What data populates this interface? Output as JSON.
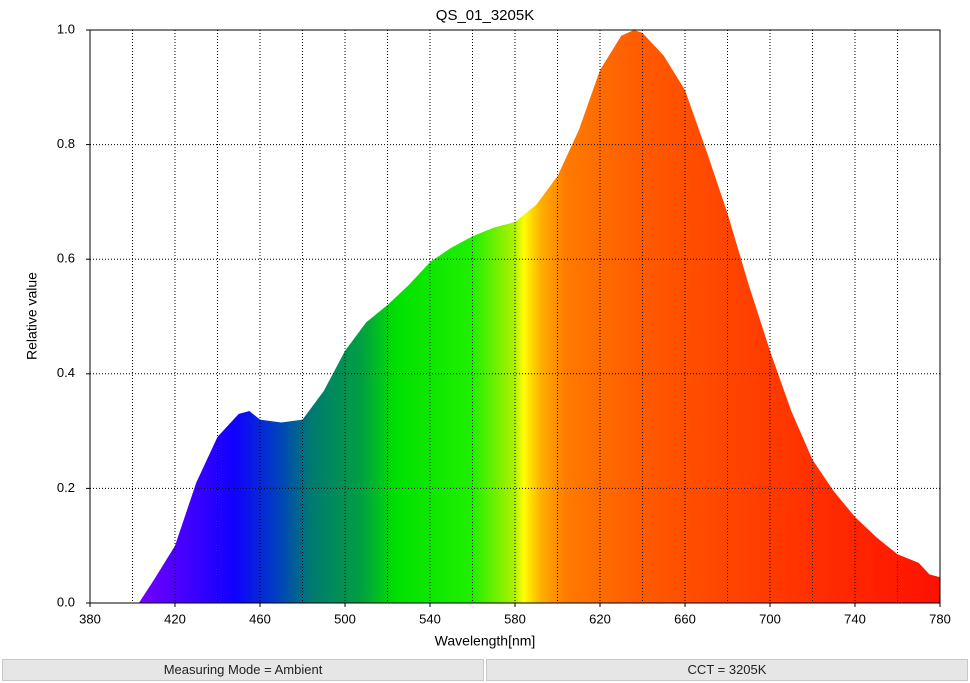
{
  "chart_data": {
    "type": "area",
    "title": "QS_01_3205K",
    "x_label": "Wavelength[nm]",
    "y_label": "Relative value",
    "x": [
      403,
      410,
      420,
      430,
      440,
      450,
      455,
      460,
      470,
      480,
      490,
      500,
      510,
      520,
      530,
      540,
      550,
      560,
      570,
      580,
      590,
      600,
      610,
      620,
      630,
      636,
      640,
      650,
      660,
      670,
      680,
      690,
      700,
      710,
      720,
      730,
      740,
      750,
      760,
      770,
      775,
      780
    ],
    "y": [
      0,
      0.04,
      0.1,
      0.21,
      0.29,
      0.33,
      0.335,
      0.32,
      0.315,
      0.32,
      0.37,
      0.44,
      0.49,
      0.52,
      0.555,
      0.595,
      0.62,
      0.64,
      0.655,
      0.665,
      0.695,
      0.745,
      0.825,
      0.93,
      0.99,
      1.0,
      0.995,
      0.955,
      0.895,
      0.79,
      0.68,
      0.555,
      0.44,
      0.335,
      0.25,
      0.195,
      0.15,
      0.115,
      0.085,
      0.07,
      0.05,
      0.045
    ],
    "xlim": [
      380,
      780
    ],
    "ylim": [
      0,
      1
    ],
    "xticks": [
      380,
      420,
      460,
      500,
      540,
      580,
      620,
      660,
      700,
      740,
      780
    ],
    "xgrid": [
      400,
      420,
      440,
      460,
      480,
      500,
      520,
      540,
      560,
      580,
      600,
      620,
      640,
      660,
      680,
      700,
      720,
      740,
      760
    ],
    "yticks": [
      {
        "value": 0,
        "label": "0.0"
      },
      0.2,
      0.4,
      0.6,
      0.8,
      {
        "value": 1,
        "label": "1.0"
      }
    ],
    "grid": true
  },
  "status_bar": [
    "Measuring Mode = Ambient",
    "CCT = 3205K"
  ]
}
